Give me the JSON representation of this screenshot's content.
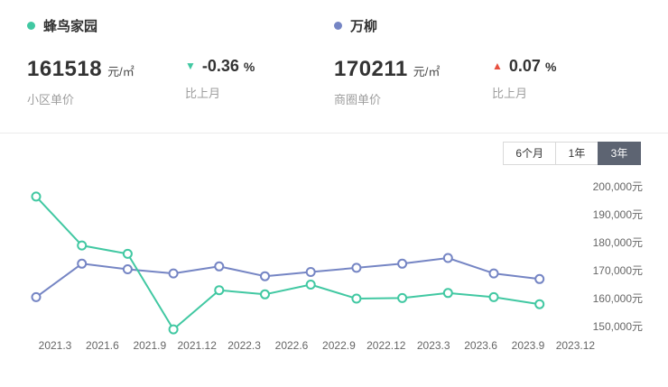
{
  "header": {
    "groups": [
      {
        "name": "蜂鸟家园",
        "color": "#41c8a2",
        "value": "161518",
        "unit": "元/㎡",
        "value_caption": "小区单价",
        "delta": {
          "icon": "▼",
          "direction": "down",
          "value": "-0.36",
          "unit": "%",
          "caption": "比上月"
        }
      },
      {
        "name": "万柳",
        "color": "#7585c4",
        "value": "170211",
        "unit": "元/㎡",
        "value_caption": "商圈单价",
        "delta": {
          "icon": "▲",
          "direction": "up",
          "value": "0.07",
          "unit": "%",
          "caption": "比上月"
        }
      }
    ]
  },
  "tabs": [
    {
      "label": "6个月",
      "active": false
    },
    {
      "label": "1年",
      "active": false
    },
    {
      "label": "3年",
      "active": true
    }
  ],
  "chart_data": {
    "type": "line",
    "x": [
      "2021.3",
      "2021.6",
      "2021.9",
      "2021.12",
      "2022.3",
      "2022.6",
      "2022.9",
      "2022.12",
      "2023.3",
      "2023.6",
      "2023.9",
      "2023.12"
    ],
    "series": [
      {
        "name": "蜂鸟家园",
        "color": "#41c8a2",
        "values": [
          196500,
          179000,
          176000,
          149000,
          163000,
          161500,
          165000,
          160000,
          160200,
          162000,
          160500,
          158000
        ]
      },
      {
        "name": "万柳",
        "color": "#7585c4",
        "values": [
          160500,
          172500,
          170500,
          169000,
          171500,
          168000,
          169500,
          171000,
          172500,
          174500,
          169000,
          167000
        ]
      }
    ],
    "ylim": [
      150000,
      200000
    ],
    "y_ticks": [
      200000,
      190000,
      180000,
      170000,
      160000,
      150000
    ],
    "y_tick_labels": [
      "200,000元",
      "190,000元",
      "180,000元",
      "170,000元",
      "160,000元",
      "150,000元"
    ],
    "y_axis_side": "right",
    "grid": false,
    "marker": "open-circle"
  }
}
